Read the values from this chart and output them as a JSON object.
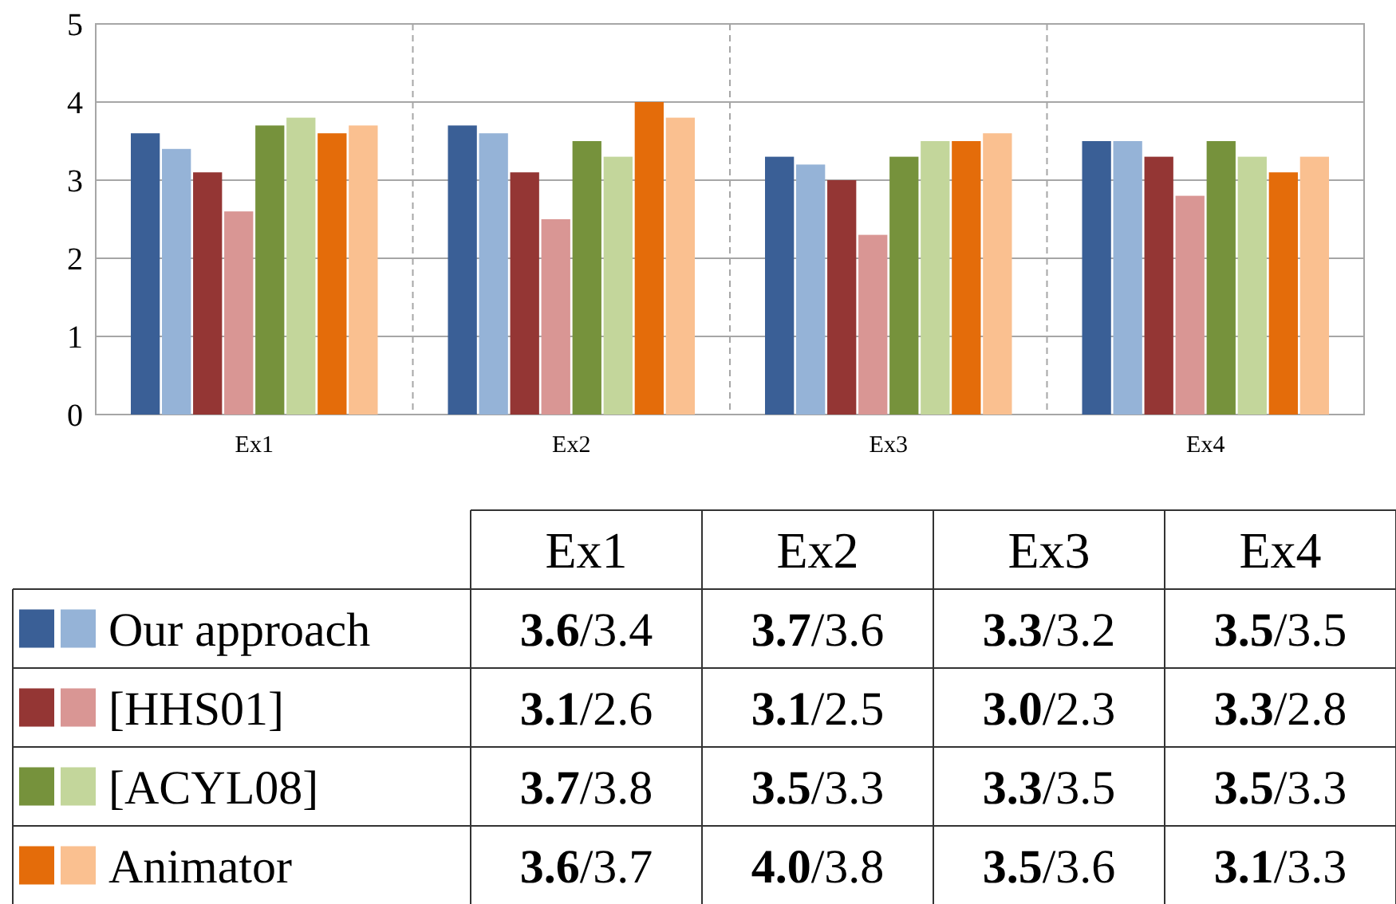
{
  "chart_data": {
    "type": "bar",
    "categories": [
      "Ex1",
      "Ex2",
      "Ex3",
      "Ex4"
    ],
    "ylim": [
      0,
      5
    ],
    "yticks": [
      0,
      1,
      2,
      3,
      4,
      5
    ],
    "grid": "y",
    "legend": "bottom",
    "series": [
      {
        "color": "#3a5f96",
        "values": [
          3.6,
          3.7,
          3.3,
          3.5
        ]
      },
      {
        "name": "Our approach",
        "color": "#95b3d7",
        "values": [
          3.4,
          3.6,
          3.2,
          3.5
        ]
      },
      {
        "color": "#943634",
        "values": [
          3.1,
          3.1,
          3.0,
          3.3
        ]
      },
      {
        "name": "[HHS01]",
        "color": "#d99694",
        "values": [
          2.6,
          2.5,
          2.3,
          2.8
        ]
      },
      {
        "color": "#76923c",
        "values": [
          3.7,
          3.5,
          3.3,
          3.5
        ]
      },
      {
        "name": "[ACYL08]",
        "color": "#c3d69b",
        "values": [
          3.8,
          3.3,
          3.5,
          3.3
        ]
      },
      {
        "color": "#e46c0a",
        "values": [
          3.6,
          4.0,
          3.5,
          3.1
        ]
      },
      {
        "name": "Animator",
        "color": "#fac090",
        "values": [
          3.7,
          3.8,
          3.6,
          3.3
        ]
      }
    ],
    "annotations": [
      "3.6/3.4",
      "3.7/3.6",
      "3.3/3.2",
      "3.5/3.5",
      "3.1/2.6",
      "3.1/2.5",
      "3.0/2.3",
      "3.3/2.8",
      "3.7/3.8",
      "3.5/3.3",
      "3.3/3.5",
      "3.5/3.3",
      "3.6/3.7",
      "4.0/3.8",
      "3.5/3.6",
      "3.1/3.3"
    ]
  }
}
